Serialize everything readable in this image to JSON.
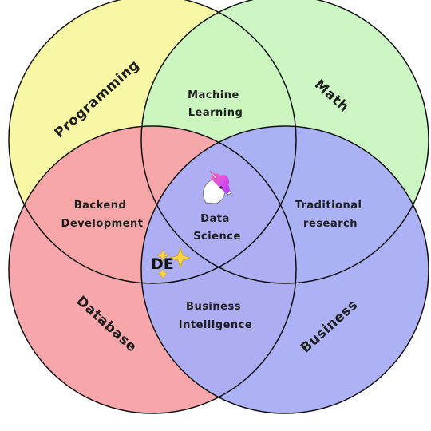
{
  "colors": {
    "programming": "#F7F7A0",
    "math": "#C9F7C2",
    "database": "#F7A2A8",
    "business": "#A9AEF7"
  },
  "venn": {
    "outer": {
      "programming": "Programming",
      "math": "Math",
      "database": "Database",
      "business": "Business"
    },
    "overlaps": {
      "machine_learning": [
        "Machine",
        "Learning"
      ],
      "backend_development": [
        "Backend",
        "Development"
      ],
      "traditional_research": [
        "Traditional",
        "research"
      ],
      "business_intelligence": [
        "Business",
        "Intelligence"
      ],
      "data_science": [
        "Data",
        "Science"
      ]
    },
    "badge": "DE",
    "icons": {
      "unicorn": "unicorn-icon",
      "sparkle": "sparkle-icon"
    }
  }
}
